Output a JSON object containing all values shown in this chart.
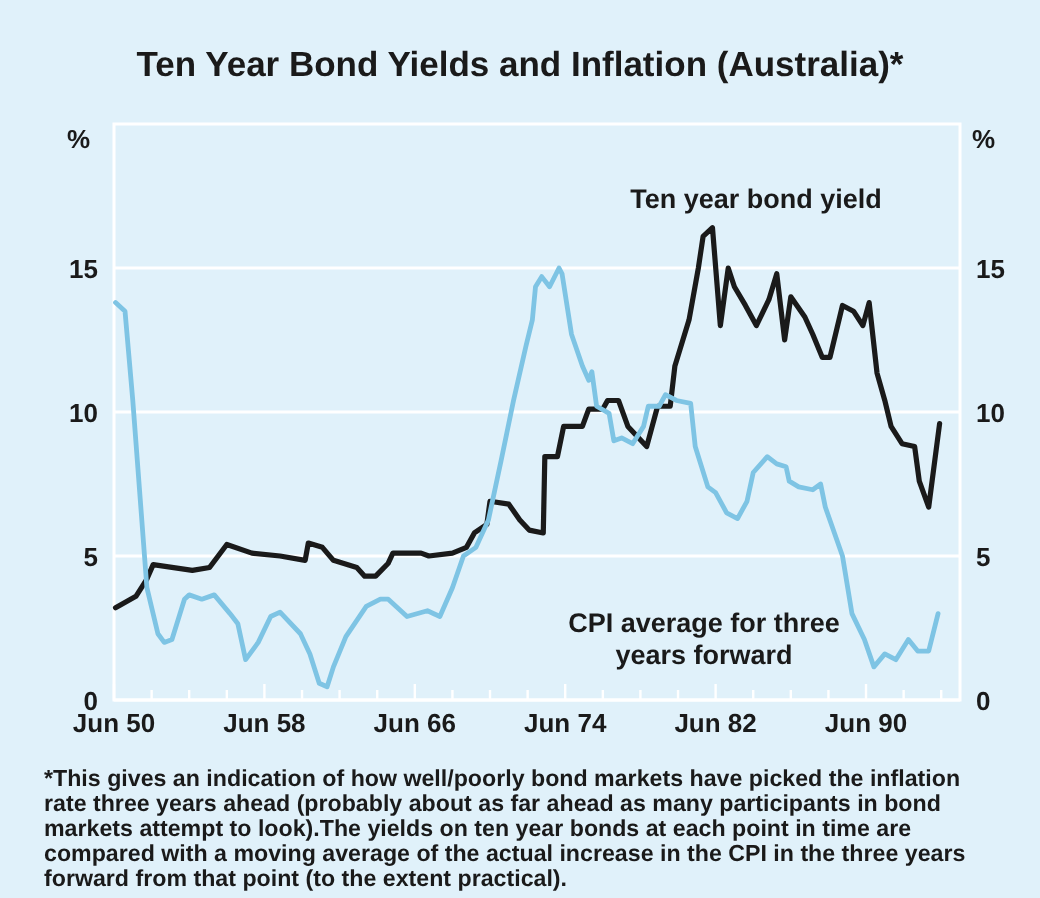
{
  "chart_data": {
    "type": "line",
    "title": "Ten Year Bond Yields and Inflation (Australia)*",
    "ylabel": "%",
    "y2label": "%",
    "xlim": [
      "1950-06",
      "1995-06"
    ],
    "xticks": [
      {
        "value": "1950-06",
        "label": "Jun 50"
      },
      {
        "value": "1952-06",
        "label": null
      },
      {
        "value": "1954-06",
        "label": null
      },
      {
        "value": "1956-06",
        "label": null
      },
      {
        "value": "1958-06",
        "label": "Jun 58"
      },
      {
        "value": "1960-06",
        "label": null
      },
      {
        "value": "1962-06",
        "label": null
      },
      {
        "value": "1964-06",
        "label": null
      },
      {
        "value": "1966-06",
        "label": "Jun 66"
      },
      {
        "value": "1968-06",
        "label": null
      },
      {
        "value": "1970-06",
        "label": null
      },
      {
        "value": "1972-06",
        "label": null
      },
      {
        "value": "1974-06",
        "label": "Jun 74"
      },
      {
        "value": "1976-06",
        "label": null
      },
      {
        "value": "1978-06",
        "label": null
      },
      {
        "value": "1980-06",
        "label": null
      },
      {
        "value": "1982-06",
        "label": "Jun 82"
      },
      {
        "value": "1984-06",
        "label": null
      },
      {
        "value": "1986-06",
        "label": null
      },
      {
        "value": "1988-06",
        "label": null
      },
      {
        "value": "1990-06",
        "label": "Jun 90"
      },
      {
        "value": "1992-06",
        "label": null
      },
      {
        "value": "1994-06",
        "label": null
      }
    ],
    "ylim": [
      0,
      20
    ],
    "yticks": [
      0,
      5,
      10,
      15
    ],
    "y2lim": [
      0,
      20
    ],
    "y2ticks": [
      0,
      5,
      10,
      15
    ],
    "grid": "y",
    "series": [
      {
        "name": "Ten year bond yield",
        "color": "#1a1a1a",
        "x": [
          "1950-07",
          "1951-08",
          "1952-03",
          "1952-07",
          "1954-08",
          "1955-07",
          "1956-06",
          "1957-10",
          "1959-04",
          "1960-08",
          "1960-10",
          "1961-07",
          "1962-02",
          "1963-05",
          "1963-10",
          "1964-05",
          "1965-01",
          "1965-04",
          "1966-10",
          "1967-03",
          "1968-06",
          "1969-03",
          "1969-08",
          "1970-04",
          "1970-06",
          "1971-06",
          "1972-01",
          "1972-07",
          "1973-04",
          "1973-05",
          "1974-01",
          "1974-05",
          "1975-05",
          "1975-09",
          "1976-06",
          "1976-09",
          "1977-04",
          "1977-10",
          "1978-10",
          "1979-05",
          "1980-01",
          "1980-04",
          "1981-01",
          "1981-07",
          "1981-10",
          "1982-04",
          "1982-09",
          "1983-02",
          "1983-06",
          "1984-01",
          "1984-08",
          "1985-04",
          "1985-09",
          "1986-02",
          "1986-06",
          "1987-03",
          "1987-08",
          "1988-02",
          "1988-07",
          "1989-03",
          "1989-10",
          "1990-04",
          "1990-08",
          "1991-01",
          "1991-06",
          "1991-10",
          "1992-05",
          "1993-01",
          "1993-04",
          "1993-10",
          "1994-05"
        ],
        "values": [
          3.2,
          3.6,
          4.2,
          4.7,
          4.5,
          4.6,
          5.4,
          5.1,
          5.0,
          4.85,
          5.45,
          5.3,
          4.85,
          4.6,
          4.3,
          4.3,
          4.75,
          5.1,
          5.1,
          5.0,
          5.1,
          5.3,
          5.8,
          6.1,
          6.9,
          6.8,
          6.25,
          5.9,
          5.8,
          8.45,
          8.45,
          9.5,
          9.5,
          10.1,
          10.1,
          10.4,
          10.4,
          9.5,
          8.8,
          10.2,
          10.2,
          11.6,
          13.2,
          15.0,
          16.1,
          16.4,
          13.0,
          15.0,
          14.35,
          13.7,
          13.0,
          13.9,
          14.8,
          12.5,
          14.0,
          13.3,
          12.7,
          11.9,
          11.9,
          13.7,
          13.5,
          13.0,
          13.8,
          11.35,
          10.4,
          9.5,
          8.9,
          8.8,
          7.6,
          6.7,
          9.6
        ]
      },
      {
        "name": "CPI average for three years forward",
        "color": "#7ec4e4",
        "x": [
          "1950-07",
          "1951-01",
          "1951-06",
          "1952-03",
          "1952-10",
          "1953-02",
          "1953-07",
          "1954-03",
          "1954-06",
          "1955-02",
          "1955-10",
          "1956-08",
          "1957-01",
          "1957-06",
          "1958-02",
          "1958-10",
          "1959-04",
          "1960-05",
          "1960-11",
          "1961-05",
          "1961-10",
          "1962-02",
          "1962-10",
          "1963-11",
          "1964-08",
          "1965-01",
          "1966-01",
          "1967-02",
          "1967-10",
          "1968-06",
          "1969-01",
          "1969-09",
          "1970-05",
          "1971-01",
          "1971-09",
          "1972-05",
          "1972-09",
          "1972-11",
          "1973-03",
          "1973-08",
          "1974-02",
          "1974-04",
          "1974-10",
          "1975-05",
          "1975-09",
          "1975-11",
          "1976-02",
          "1976-10",
          "1977-01",
          "1977-06",
          "1978-01",
          "1978-08",
          "1978-11",
          "1979-06",
          "1979-10",
          "1980-05",
          "1981-02",
          "1981-05",
          "1982-01",
          "1982-06",
          "1983-01",
          "1983-08",
          "1984-02",
          "1984-06",
          "1985-03",
          "1985-09",
          "1986-03",
          "1986-05",
          "1986-11",
          "1987-08",
          "1988-01",
          "1988-04",
          "1989-03",
          "1989-09",
          "1990-05",
          "1990-11",
          "1991-06",
          "1992-01",
          "1992-09",
          "1993-03",
          "1993-10",
          "1994-04"
        ],
        "values": [
          13.8,
          13.5,
          10.4,
          3.9,
          2.3,
          2.0,
          2.1,
          3.5,
          3.65,
          3.5,
          3.65,
          3.0,
          2.65,
          1.4,
          2.0,
          2.9,
          3.05,
          2.3,
          1.6,
          0.58,
          0.46,
          1.15,
          2.2,
          3.25,
          3.5,
          3.5,
          2.9,
          3.1,
          2.9,
          3.9,
          5.0,
          5.3,
          6.25,
          8.3,
          10.4,
          12.3,
          13.2,
          14.35,
          14.7,
          14.35,
          15.0,
          14.8,
          12.7,
          11.6,
          11.1,
          11.4,
          10.2,
          9.95,
          9.0,
          9.1,
          8.9,
          9.5,
          10.2,
          10.2,
          10.6,
          10.4,
          10.3,
          8.8,
          7.4,
          7.2,
          6.5,
          6.3,
          6.9,
          7.9,
          8.45,
          8.2,
          8.1,
          7.6,
          7.4,
          7.3,
          7.5,
          6.7,
          5.0,
          3.0,
          2.1,
          1.15,
          1.6,
          1.4,
          2.1,
          1.7,
          1.7,
          3.0
        ]
      }
    ],
    "annotations": [
      "*This gives an indication of how well/poorly bond markets have picked the inflation rate three years ahead (probably about as far ahead as many participants in bond markets attempt to look).The yields on ten year bonds at each point in time are compared with a moving average of the actual increase in the CPI in the three years forward from that point (to the extent practical)."
    ]
  }
}
